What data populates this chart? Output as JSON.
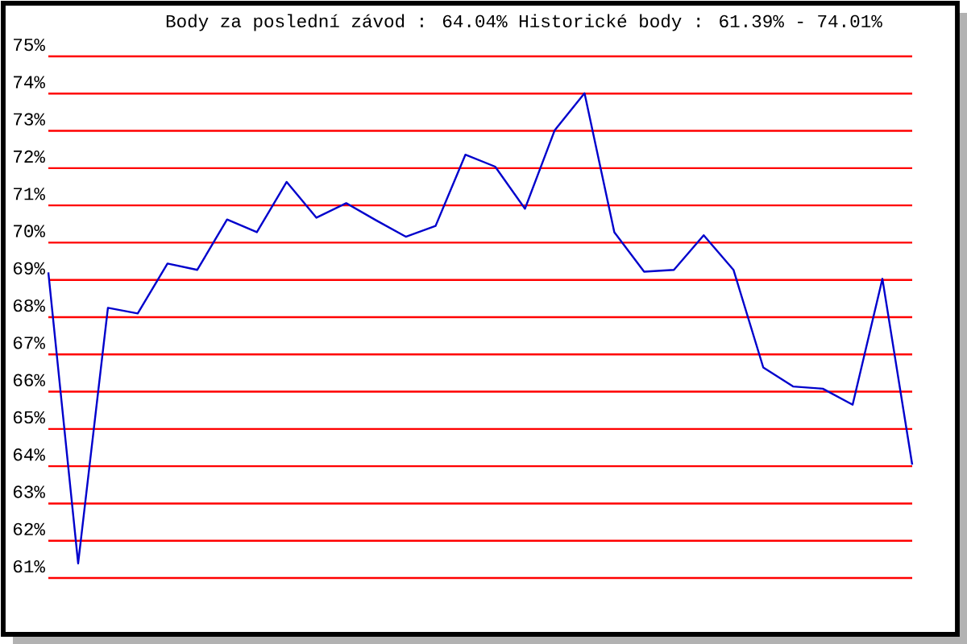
{
  "chart_data": {
    "type": "line",
    "title": "Body za poslední závod : 64.04%  Historické body : 61.39% - 74.01%",
    "categories": [
      null,
      null,
      null,
      null,
      null,
      null,
      null,
      null,
      null,
      null,
      null,
      null,
      null,
      null,
      null,
      null,
      null,
      null,
      null,
      null,
      null,
      null,
      null,
      null,
      null,
      null,
      null,
      null,
      null,
      null
    ],
    "series": [
      {
        "color": "#0000cc",
        "values": [
          69.2,
          61.39,
          68.25,
          68.1,
          69.44,
          69.27,
          70.62,
          70.28,
          71.63,
          70.67,
          71.06,
          70.6,
          70.16,
          70.45,
          72.36,
          72.04,
          70.91,
          73.02,
          74.01,
          70.28,
          69.22,
          69.27,
          70.2,
          69.27,
          66.65,
          66.14,
          66.08,
          65.65,
          69.03,
          64.04
        ]
      }
    ],
    "ylim": [
      61,
      75
    ],
    "yticks": [
      {
        "value": 61,
        "label": "61%"
      },
      {
        "value": 62,
        "label": "62%"
      },
      {
        "value": 63,
        "label": "63%"
      },
      {
        "value": 64,
        "label": "64%"
      },
      {
        "value": 65,
        "label": "65%"
      },
      {
        "value": 66,
        "label": "66%"
      },
      {
        "value": 67,
        "label": "67%"
      },
      {
        "value": 68,
        "label": "68%"
      },
      {
        "value": 69,
        "label": "69%"
      },
      {
        "value": 70,
        "label": "70%"
      },
      {
        "value": 71,
        "label": "71%"
      },
      {
        "value": 72,
        "label": "72%"
      },
      {
        "value": 73,
        "label": "73%"
      },
      {
        "value": 74,
        "label": "74%"
      },
      {
        "value": 75,
        "label": "75%"
      }
    ],
    "grid": "y",
    "marker": "none",
    "line_style": "solid"
  }
}
